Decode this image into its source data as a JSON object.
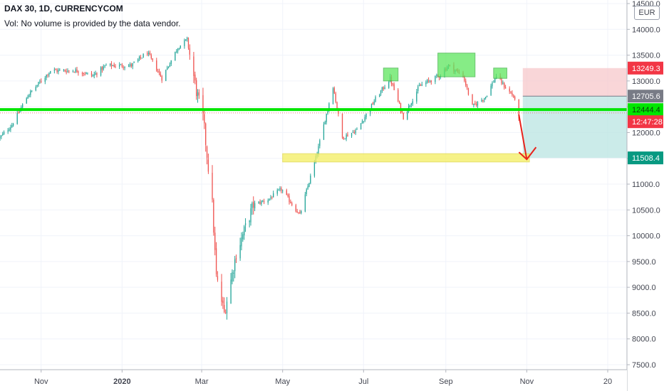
{
  "header": {
    "title": "DAX 30, 1D, CURRENCYCOM",
    "vol_note": "Vol: No volume is provided by the data vendor."
  },
  "currency": "EUR",
  "chart_data": {
    "type": "candlestick",
    "y_ticks": [
      7500,
      8000,
      8500,
      9000,
      9500,
      10000,
      10500,
      11000,
      11500,
      12000,
      12500,
      13000,
      13500,
      14000,
      14500
    ],
    "ylim": [
      7400,
      14600
    ],
    "x_labels": [
      "Nov",
      "2020",
      "Mar",
      "May",
      "Jul",
      "Sep",
      "Nov",
      "20"
    ],
    "x_range": [
      "2019-10-01",
      "2021-01-01"
    ],
    "price_tags": [
      {
        "label": "13249.3",
        "value": 13249.3,
        "color": "#f23645"
      },
      {
        "label": "12705.6",
        "value": 12705.6,
        "color": "#787b86"
      },
      {
        "label": "12444.4",
        "value": 12444.4,
        "color": "#00e600"
      },
      {
        "label": "12:47:28",
        "value": 12210,
        "color": "#f23645"
      },
      {
        "label": "11508.4",
        "value": 11508.4,
        "color": "#089981"
      }
    ],
    "support_line": 12444.4,
    "target_zone": [
      11430,
      11590
    ],
    "stop_zone": [
      12705.6,
      13249.3
    ],
    "profit_zone": [
      11508.4,
      12705.6
    ],
    "resistance_boxes": [
      {
        "from": "2020-07-16",
        "to": "2020-07-27",
        "low": 13000,
        "high": 13250
      },
      {
        "from": "2020-08-26",
        "to": "2020-09-23",
        "low": 13080,
        "high": 13540
      },
      {
        "from": "2020-10-07",
        "to": "2020-10-17",
        "low": 13050,
        "high": 13250
      }
    ],
    "forecast_arrow": {
      "from": {
        "date": "2020-10-26",
        "value": 12350
      },
      "to": {
        "date": "2020-11-01",
        "value": 11480
      }
    },
    "price_path": [
      {
        "date": "2019-10-01",
        "value": 11900
      },
      {
        "date": "2019-10-10",
        "value": 12150
      },
      {
        "date": "2019-10-22",
        "value": 12720
      },
      {
        "date": "2019-11-08",
        "value": 13200
      },
      {
        "date": "2019-11-28",
        "value": 13200
      },
      {
        "date": "2019-12-10",
        "value": 13100
      },
      {
        "date": "2019-12-20",
        "value": 13300
      },
      {
        "date": "2020-01-08",
        "value": 13300
      },
      {
        "date": "2020-01-20",
        "value": 13550
      },
      {
        "date": "2020-01-31",
        "value": 13050
      },
      {
        "date": "2020-02-12",
        "value": 13650
      },
      {
        "date": "2020-02-19",
        "value": 13800
      },
      {
        "date": "2020-02-26",
        "value": 12800
      },
      {
        "date": "2020-03-02",
        "value": 12300
      },
      {
        "date": "2020-03-09",
        "value": 10600
      },
      {
        "date": "2020-03-12",
        "value": 9200
      },
      {
        "date": "2020-03-18",
        "value": 8500
      },
      {
        "date": "2020-03-27",
        "value": 9650
      },
      {
        "date": "2020-04-09",
        "value": 10600
      },
      {
        "date": "2020-04-20",
        "value": 10700
      },
      {
        "date": "2020-04-30",
        "value": 10900
      },
      {
        "date": "2020-05-14",
        "value": 10400
      },
      {
        "date": "2020-05-27",
        "value": 11600
      },
      {
        "date": "2020-06-08",
        "value": 12900
      },
      {
        "date": "2020-06-15",
        "value": 11900
      },
      {
        "date": "2020-06-26",
        "value": 12050
      },
      {
        "date": "2020-07-10",
        "value": 12650
      },
      {
        "date": "2020-07-21",
        "value": 13050
      },
      {
        "date": "2020-07-31",
        "value": 12300
      },
      {
        "date": "2020-08-12",
        "value": 12900
      },
      {
        "date": "2020-08-27",
        "value": 13100
      },
      {
        "date": "2020-09-03",
        "value": 13300
      },
      {
        "date": "2020-09-14",
        "value": 13100
      },
      {
        "date": "2020-09-21",
        "value": 12500
      },
      {
        "date": "2020-10-01",
        "value": 12700
      },
      {
        "date": "2020-10-09",
        "value": 13100
      },
      {
        "date": "2020-10-15",
        "value": 12900
      },
      {
        "date": "2020-10-22",
        "value": 12700
      },
      {
        "date": "2020-10-26",
        "value": 12300
      }
    ]
  }
}
